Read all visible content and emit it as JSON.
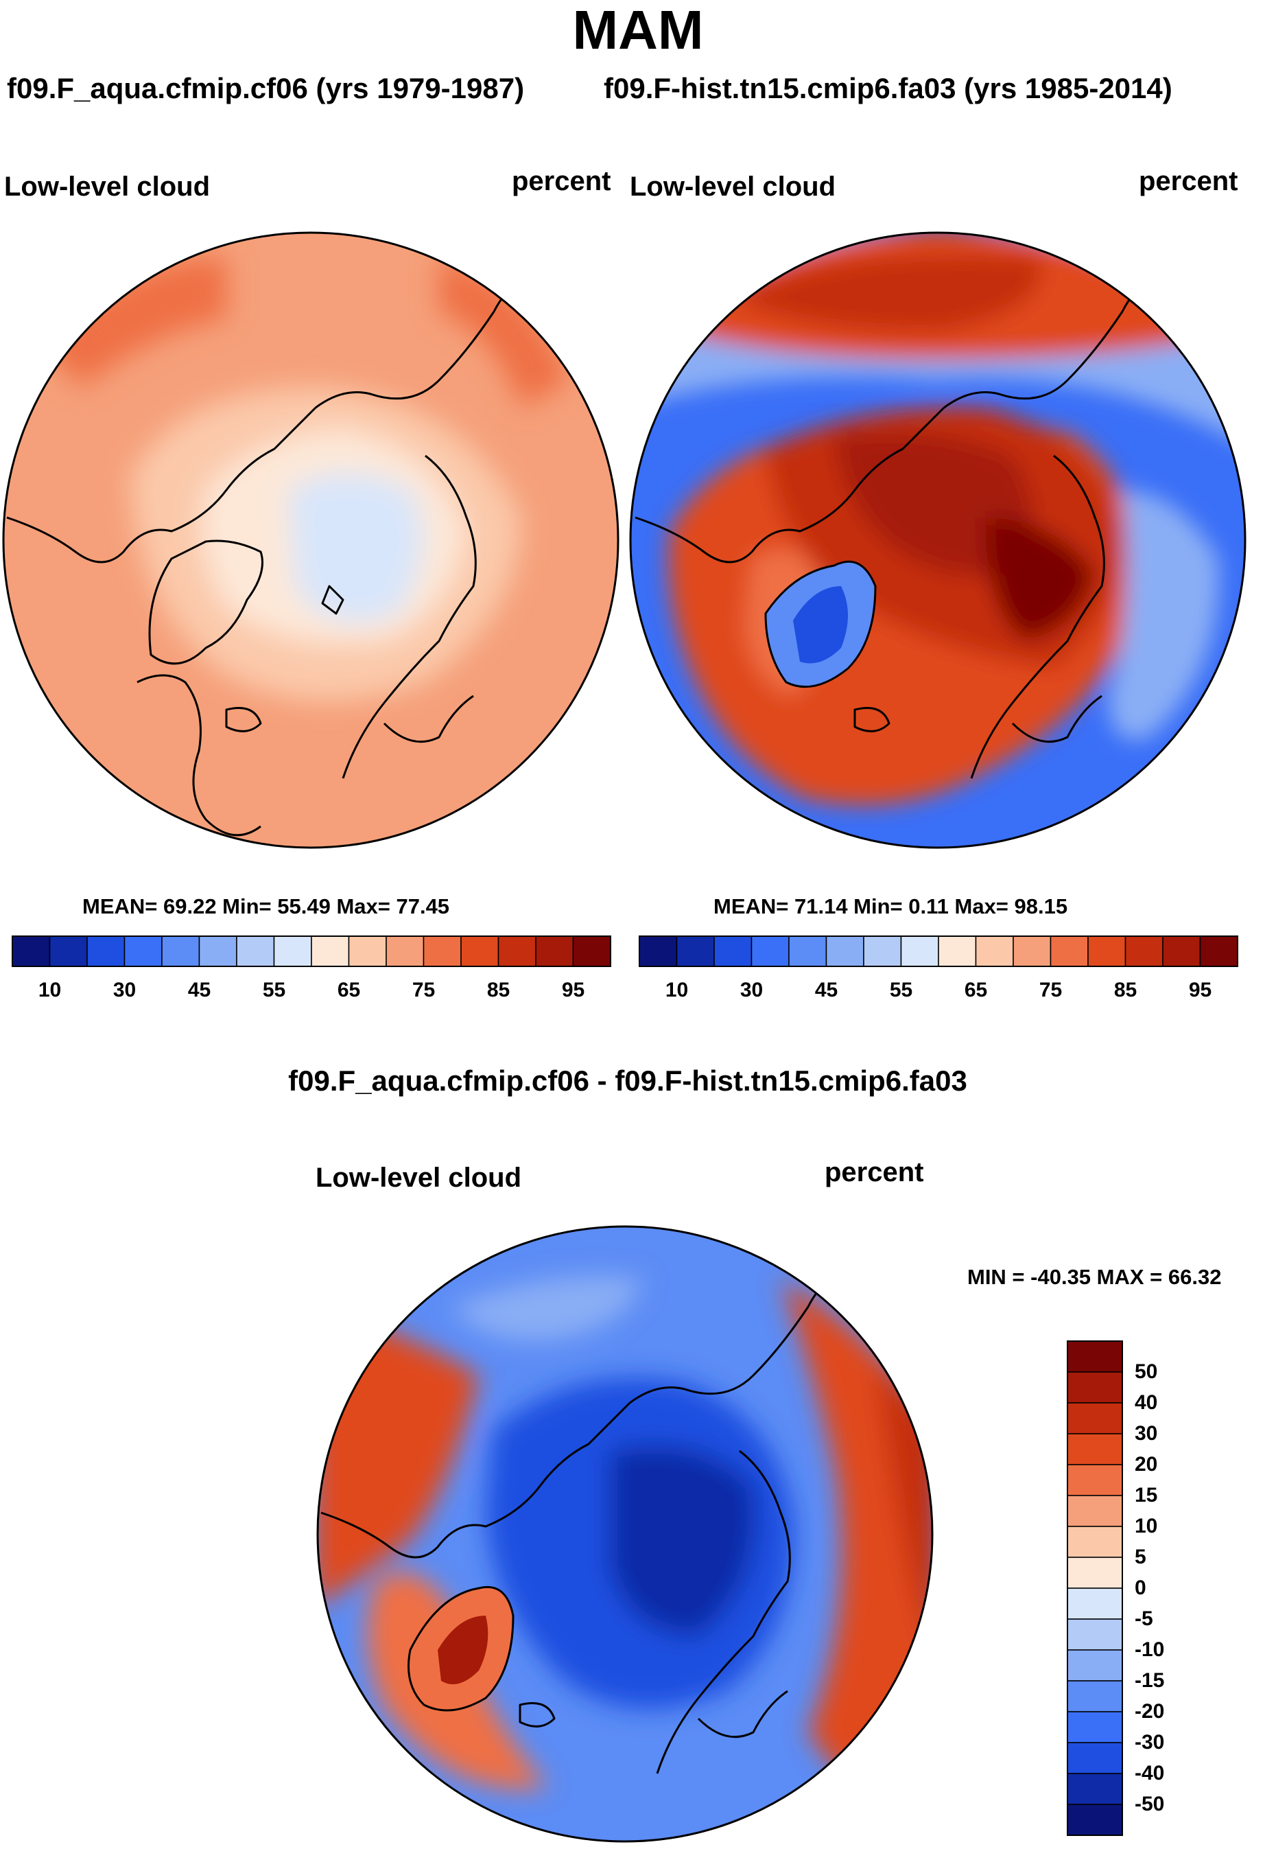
{
  "figure": {
    "season": "MAM",
    "panel_a": {
      "case_title": "f09.F_aqua.cfmip.cf06 (yrs 1979-1987)",
      "variable": "Low-level cloud",
      "units": "percent",
      "stats_label": "MEAN=  69.22  Min=  55.49  Max=  77.45"
    },
    "panel_b": {
      "case_title": "f09.F-hist.tn15.cmip6.fa03 (yrs 1985-2014)",
      "variable": "Low-level cloud",
      "units": "percent",
      "stats_label": "MEAN=  71.14  Min=   0.11  Max=  98.15"
    },
    "panel_diff": {
      "title": "f09.F_aqua.cfmip.cf06 - f09.F-hist.tn15.cmip6.fa03",
      "variable": "Low-level cloud",
      "units": "percent",
      "range_label": "MIN = -40.35 MAX =  66.32"
    }
  },
  "chart_data": [
    {
      "type": "heatmap",
      "projection": "north-polar-stereographic",
      "title": "f09.F_aqua.cfmip.cf06 (yrs 1979-1987)",
      "variable": "Low-level cloud",
      "units": "percent",
      "mean": 69.22,
      "min": 55.49,
      "max": 77.45,
      "colorbar_levels": [
        5,
        10,
        20,
        30,
        40,
        45,
        50,
        55,
        60,
        65,
        70,
        75,
        80,
        85,
        90,
        95
      ],
      "colorbar_ticks": [
        "10",
        "30",
        "45",
        "55",
        "65",
        "75",
        "85",
        "95"
      ],
      "colors": [
        "#0a1478",
        "#0f2ba8",
        "#1f4fe0",
        "#3a6ff7",
        "#5c8cf5",
        "#8aaef5",
        "#b3cbf7",
        "#d8e6fb",
        "#fde8d8",
        "#fbc9aa",
        "#f5a07a",
        "#ef6f44",
        "#e04a1c",
        "#c52e0e",
        "#a51a08",
        "#7a0505"
      ],
      "regions": [
        {
          "area": "north-pole",
          "value": 57
        },
        {
          "area": "inner-arctic",
          "value": 62
        },
        {
          "area": "greenland",
          "value": 63
        },
        {
          "area": "mid-latitudes",
          "value": 70
        },
        {
          "area": "north-pacific",
          "value": 76
        }
      ]
    },
    {
      "type": "heatmap",
      "projection": "north-polar-stereographic",
      "title": "f09.F-hist.tn15.cmip6.fa03 (yrs 1985-2014)",
      "variable": "Low-level cloud",
      "units": "percent",
      "mean": 71.14,
      "min": 0.11,
      "max": 98.15,
      "colorbar_levels": [
        5,
        10,
        20,
        30,
        40,
        45,
        50,
        55,
        60,
        65,
        70,
        75,
        80,
        85,
        90,
        95
      ],
      "colorbar_ticks": [
        "10",
        "30",
        "45",
        "55",
        "65",
        "75",
        "85",
        "95"
      ],
      "colors": [
        "#0a1478",
        "#0f2ba8",
        "#1f4fe0",
        "#3a6ff7",
        "#5c8cf5",
        "#8aaef5",
        "#b3cbf7",
        "#d8e6fb",
        "#fde8d8",
        "#fbc9aa",
        "#f5a07a",
        "#ef6f44",
        "#e04a1c",
        "#c52e0e",
        "#a51a08",
        "#7a0505"
      ],
      "regions": [
        {
          "area": "arctic-ocean",
          "value": 93
        },
        {
          "area": "barents-kara",
          "value": 96
        },
        {
          "area": "greenland-interior",
          "value": 20
        },
        {
          "area": "north-atlantic",
          "value": 82
        },
        {
          "area": "north-pacific",
          "value": 88
        },
        {
          "area": "siberia-eurasia",
          "value": 40
        },
        {
          "area": "north-america-interior",
          "value": 45
        }
      ]
    },
    {
      "type": "heatmap",
      "projection": "north-polar-stereographic",
      "title": "f09.F_aqua.cfmip.cf06 - f09.F-hist.tn15.cmip6.fa03",
      "variable": "Low-level cloud",
      "units": "percent",
      "min": -40.35,
      "max": 66.32,
      "colorbar_levels": [
        -50,
        -40,
        -30,
        -20,
        -15,
        -10,
        -5,
        0,
        5,
        10,
        15,
        20,
        30,
        40,
        50
      ],
      "colorbar_ticks": [
        "50",
        "40",
        "30",
        "20",
        "15",
        "10",
        "5",
        "0",
        "-5",
        "-10",
        "-15",
        "-20",
        "-30",
        "-40",
        "-50"
      ],
      "colors": [
        "#7a0505",
        "#a51a08",
        "#c52e0e",
        "#e04a1c",
        "#ef6f44",
        "#f5a07a",
        "#fbc9aa",
        "#fde8d8",
        "#d8e6fb",
        "#b3cbf7",
        "#8aaef5",
        "#5c8cf5",
        "#3a6ff7",
        "#1f4fe0",
        "#0f2ba8",
        "#0a1478"
      ],
      "regions": [
        {
          "area": "arctic-ocean",
          "value": -30
        },
        {
          "area": "greenland",
          "value": 45
        },
        {
          "area": "siberia-eurasia",
          "value": 30
        },
        {
          "area": "north-america-interior",
          "value": 25
        },
        {
          "area": "north-pacific",
          "value": -10
        },
        {
          "area": "north-atlantic",
          "value": -15
        }
      ]
    }
  ]
}
